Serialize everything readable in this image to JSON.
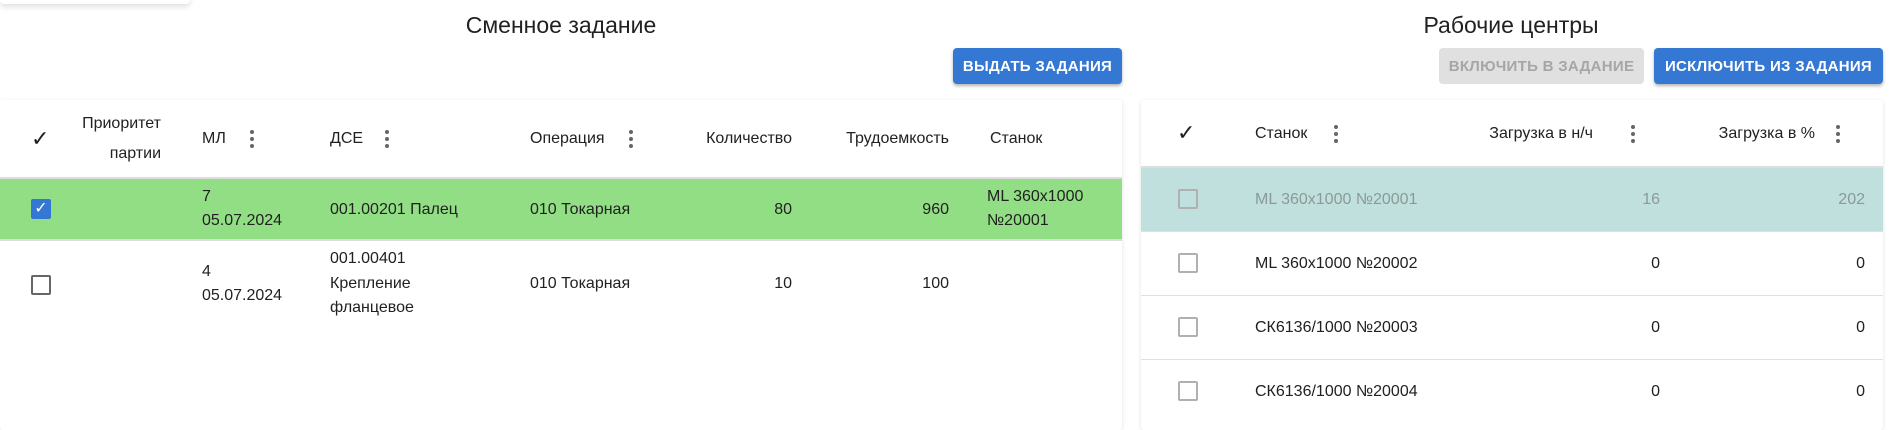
{
  "left": {
    "title": "Сменное задание",
    "issue_button": "ВЫДАТЬ ЗАДАНИЯ",
    "headers": {
      "select": "✓",
      "priority_1": "Приоритет",
      "priority_2": "партии",
      "ml": "МЛ",
      "dse": "ДСЕ",
      "operation": "Операция",
      "quantity": "Количество",
      "labor": "Трудоемкость",
      "machine": "Станок"
    },
    "rows": [
      {
        "checked": true,
        "ml": "7",
        "date": "05.07.2024",
        "dse1": "001.00201 Палец",
        "dse2": "",
        "dse3": "",
        "operation": "010 Токарная",
        "quantity": "80",
        "labor": "960",
        "machine1": "ML 360x1000",
        "machine2": "№20001",
        "bg": "#92de85"
      },
      {
        "checked": false,
        "ml": "4",
        "date": "05.07.2024",
        "dse1": "001.00401",
        "dse2": "Крепление",
        "dse3": "фланцевое",
        "operation": "010 Токарная",
        "quantity": "10",
        "labor": "100",
        "machine1": "",
        "machine2": "",
        "bg": "#ffffff"
      }
    ]
  },
  "right": {
    "title": "Рабочие центры",
    "include_button": "ВКЛЮЧИТЬ В ЗАДАНИЕ",
    "exclude_button": "ИСКЛЮЧИТЬ ИЗ ЗАДАНИЯ",
    "headers": {
      "select": "✓",
      "machine": "Станок",
      "load_hours": "Загрузка в н/ч",
      "load_pct": "Загрузка в %"
    },
    "rows": [
      {
        "machine": "ML 360x1000 №20001",
        "load_hours": "16",
        "load_pct": "202",
        "bg": "#c0e0dd"
      },
      {
        "machine": "ML 360x1000 №20002",
        "load_hours": "0",
        "load_pct": "0",
        "bg": "#ffffff"
      },
      {
        "machine": "СК6136/1000 №20003",
        "load_hours": "0",
        "load_pct": "0",
        "bg": "#ffffff"
      },
      {
        "machine": "СК6136/1000 №20004",
        "load_hours": "0",
        "load_pct": "0",
        "bg": "#ffffff"
      }
    ]
  },
  "colors": {
    "primary": "#3478d4",
    "selected_green": "#92de85",
    "selected_teal": "#c0e0dd"
  }
}
